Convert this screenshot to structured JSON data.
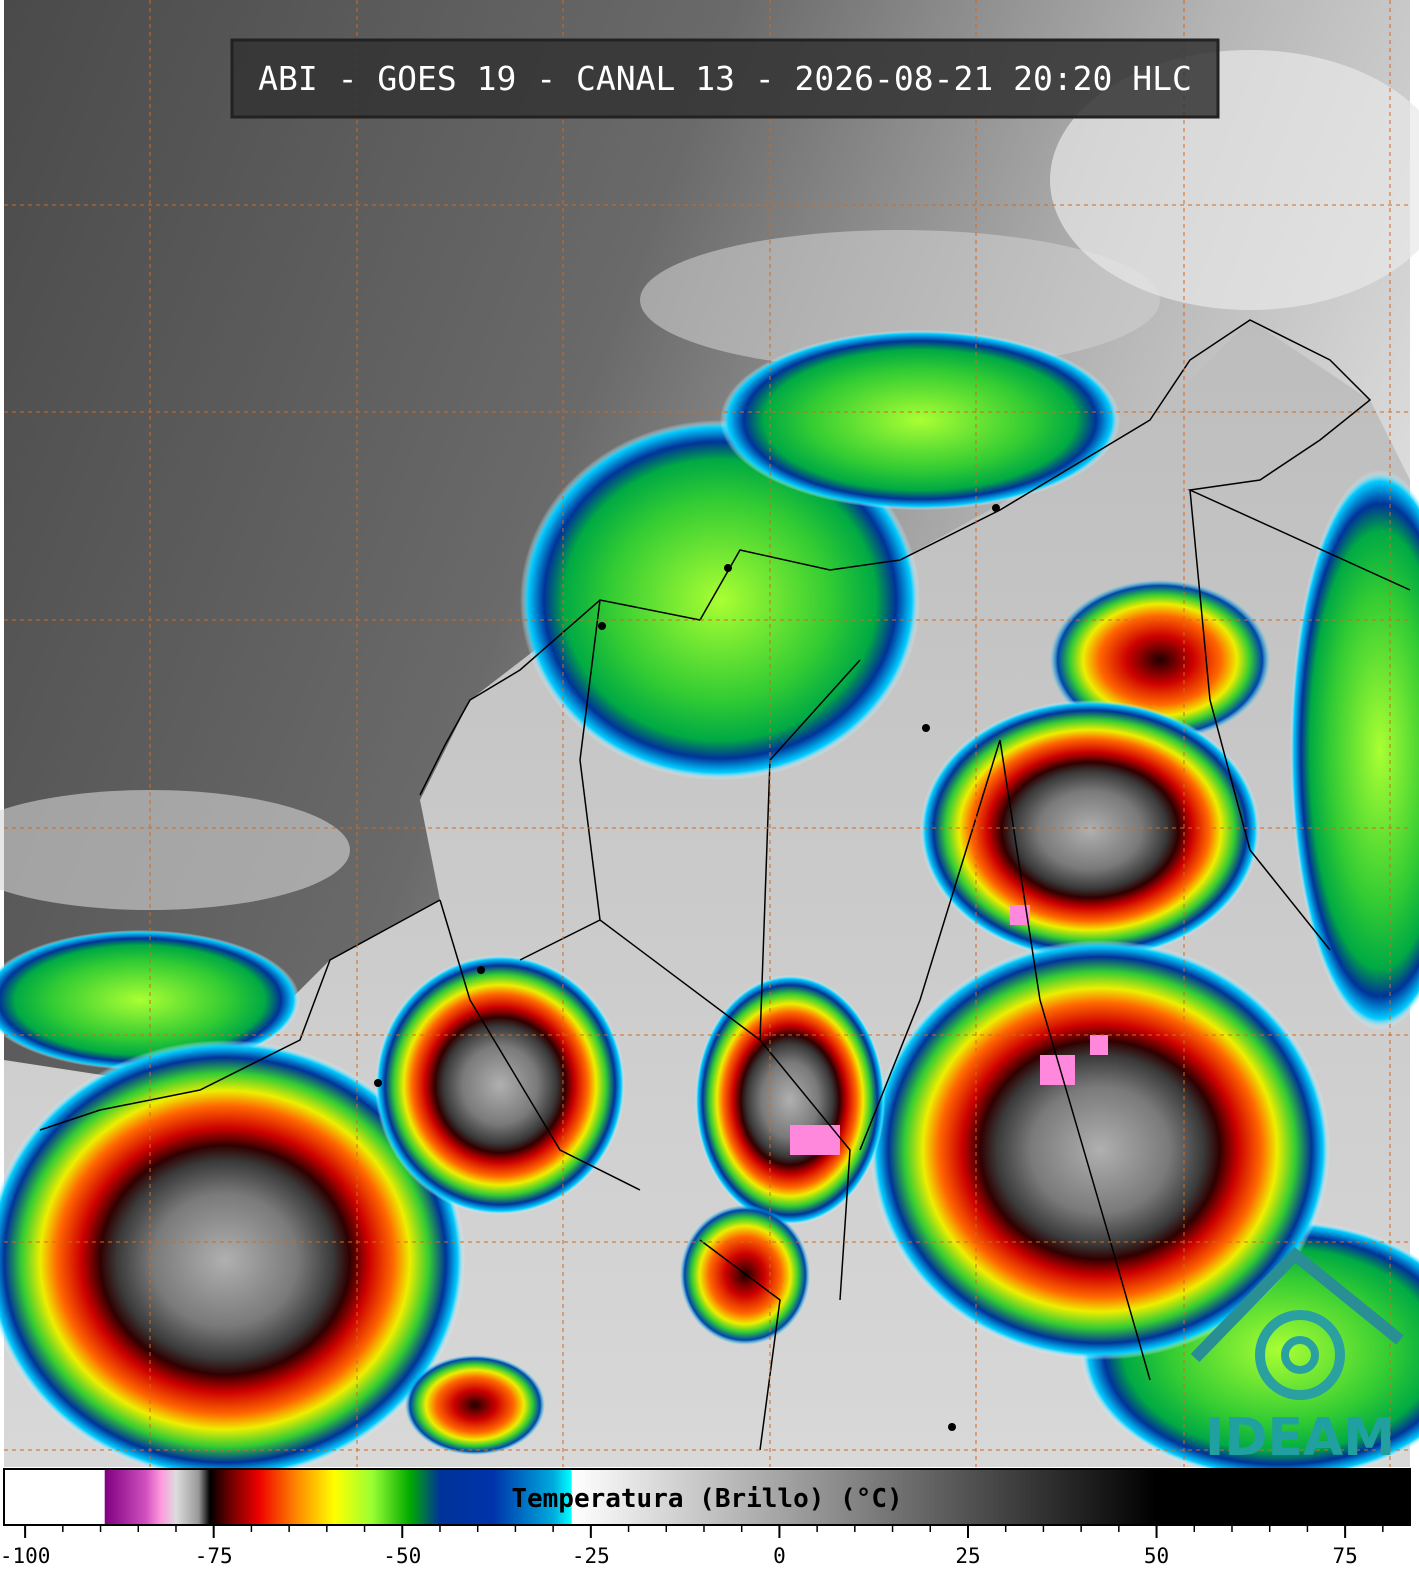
{
  "header": {
    "title": "ABI - GOES 19 - CANAL 13 - 2026-08-21 20:20 HLC"
  },
  "colorbar": {
    "label": "Temperatura (Brillo) (°C)",
    "xlim": [
      -102.8,
      83.6
    ],
    "xticks": [
      -100,
      -75,
      -50,
      -25,
      0,
      25,
      50,
      75
    ],
    "minor_tick_step": 5,
    "colorscale": [
      {
        "value": -102.8,
        "color": "#ffffff"
      },
      {
        "value": -89.5,
        "color": "#ffffff"
      },
      {
        "value": -89.4,
        "color": "#800080"
      },
      {
        "value": -84,
        "color": "#d050c0"
      },
      {
        "value": -82,
        "color": "#ff99dd"
      },
      {
        "value": -80,
        "color": "#dddddd"
      },
      {
        "value": -77,
        "color": "#999999"
      },
      {
        "value": -75.5,
        "color": "#000000"
      },
      {
        "value": -73,
        "color": "#660000"
      },
      {
        "value": -69,
        "color": "#ee0000"
      },
      {
        "value": -64,
        "color": "#ff8800"
      },
      {
        "value": -59,
        "color": "#ffff00"
      },
      {
        "value": -54,
        "color": "#99ff33"
      },
      {
        "value": -49,
        "color": "#00aa00"
      },
      {
        "value": -45,
        "color": "#003399"
      },
      {
        "value": -38,
        "color": "#0033aa"
      },
      {
        "value": -30,
        "color": "#00aadd"
      },
      {
        "value": -27.6,
        "color": "#00ffff"
      },
      {
        "value": -27.5,
        "color": "#ffffff"
      },
      {
        "value": 50,
        "color": "#000000"
      },
      {
        "value": 83.6,
        "color": "#000000"
      }
    ]
  },
  "logo": {
    "text": "IDEAM"
  }
}
